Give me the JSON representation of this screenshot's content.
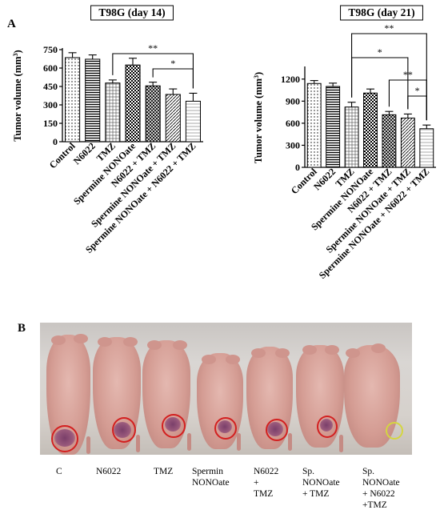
{
  "panels": {
    "a_letter": "A",
    "b_letter": "B"
  },
  "chart_data": [
    {
      "type": "bar",
      "title": "T98G (day 14)",
      "ylabel": "Tumor volume (mm",
      "ylabel_sup": "3",
      "ylabel_close": ")",
      "ylim": [
        0,
        750
      ],
      "yticks": [
        0,
        150,
        300,
        450,
        600,
        750
      ],
      "categories": [
        "Control",
        "N6022",
        "TMZ",
        "Spermine NONOate",
        "N6022 + TMZ",
        "Spermine NONOate + TMZ",
        "Spermine NONOate + N6022 + TMZ"
      ],
      "values": [
        685,
        672,
        478,
        625,
        455,
        385,
        330
      ],
      "errors": [
        40,
        35,
        25,
        55,
        30,
        45,
        65
      ],
      "annotations": [
        {
          "from": 2,
          "to": 6,
          "label": "**"
        },
        {
          "from": 4,
          "to": 6,
          "label": "*"
        }
      ]
    },
    {
      "type": "bar",
      "title": "T98G (day 21)",
      "ylabel": "Tumor volume (mm",
      "ylabel_sup": "3",
      "ylabel_close": ")",
      "ylim": [
        0,
        1350
      ],
      "yticks": [
        0,
        300,
        600,
        900,
        1200
      ],
      "categories": [
        "Control",
        "N6022",
        "TMZ",
        "Spermine NONOate",
        "N6022 + TMZ",
        "Spermine NONOate + TMZ",
        "Spermine NONOate + N6022 + TMZ"
      ],
      "values": [
        1140,
        1100,
        820,
        1010,
        715,
        670,
        525
      ],
      "errors": [
        40,
        45,
        65,
        55,
        45,
        55,
        50
      ],
      "annotations": [
        {
          "from": 2,
          "to": 6,
          "label": "**"
        },
        {
          "from": 2,
          "to": 5,
          "label": "*"
        },
        {
          "from": 4,
          "to": 6,
          "label": "**"
        },
        {
          "from": 5,
          "to": 6,
          "label": "*"
        }
      ]
    }
  ],
  "photo_labels": [
    "C",
    "N6022",
    "TMZ",
    "Spermin\nNONOate",
    "N6022\n+\nTMZ",
    "Sp.\nNONOate\n+ TMZ",
    "Sp.\nNONOate\n+ N6022\n+TMZ"
  ]
}
